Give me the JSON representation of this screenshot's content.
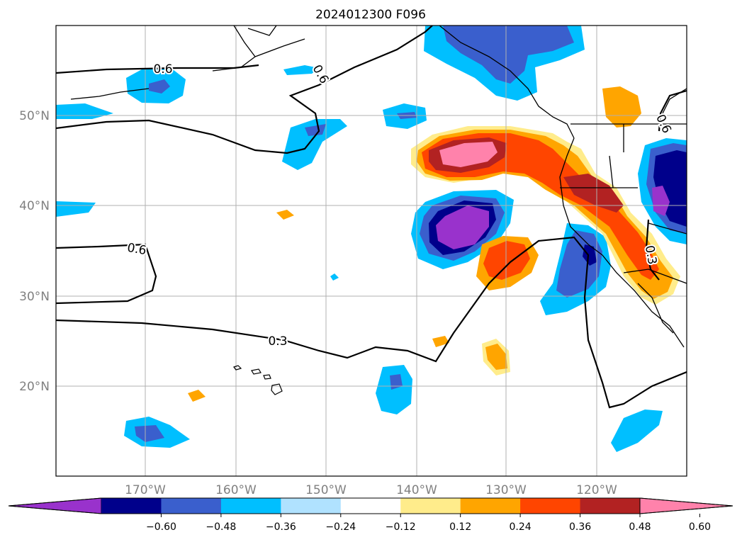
{
  "title": "2024012300 F096",
  "lat_labels": [
    "50°N",
    "40°N",
    "30°N",
    "20°N"
  ],
  "lon_labels": [
    "170°W",
    "160°W",
    "150°W",
    "140°W",
    "130°W",
    "120°W"
  ],
  "contour_labels": [
    "0.6",
    "0.6",
    "0.6",
    "0.3",
    "0.6",
    "0.3"
  ],
  "colorbar": {
    "colors": [
      "#9932cc",
      "#00008b",
      "#3a5fcd",
      "#00bfff",
      "#b0e2ff",
      "#ffffff",
      "#ffec8b",
      "#ffa500",
      "#ff4500",
      "#b22222",
      "#ff82ab"
    ],
    "tick_labels": [
      "−0.60",
      "−0.48",
      "−0.36",
      "−0.24",
      "−0.12",
      "0.12",
      "0.24",
      "0.36",
      "0.48",
      "0.60"
    ]
  },
  "colors": {
    "land_outline": "#000000",
    "grid": "#b0b0b0",
    "axis_label": "#808080"
  }
}
